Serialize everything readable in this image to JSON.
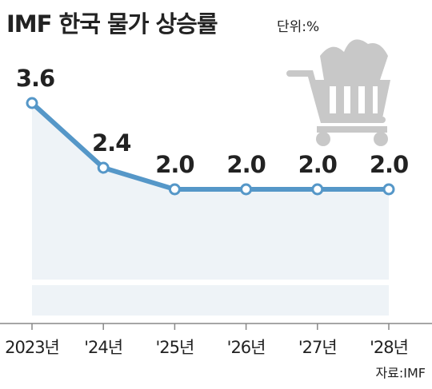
{
  "chart_data": {
    "type": "line",
    "title": "IMF 한국 물가 상승률",
    "unit": "단위:%",
    "source": "자료:IMF",
    "categories": [
      "2023년",
      "'24년",
      "'25년",
      "'26년",
      "'27년",
      "'28년"
    ],
    "values": [
      3.6,
      2.4,
      2.0,
      2.0,
      2.0,
      2.0
    ],
    "value_labels": [
      "3.6",
      "2.4",
      "2.0",
      "2.0",
      "2.0",
      "2.0"
    ],
    "color": "#5597c8"
  }
}
